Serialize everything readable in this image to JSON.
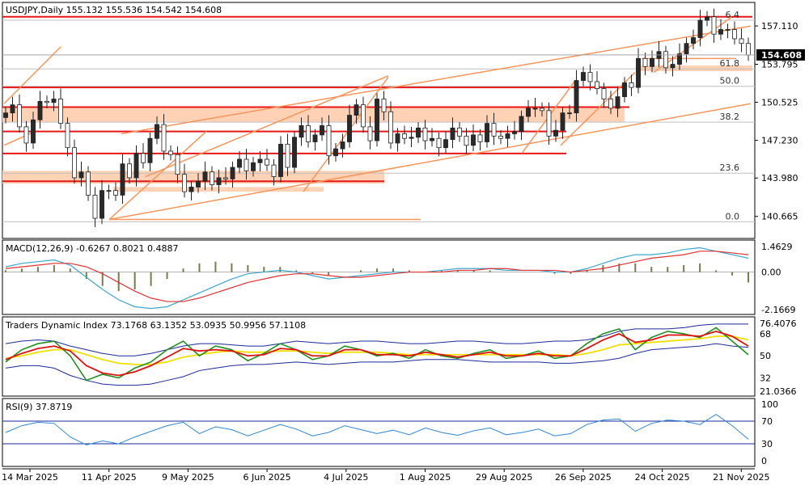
{
  "colors": {
    "bull_candle": "#2a2a2a",
    "bear_candle": "#ffffff",
    "fib_line": "#f7955a",
    "fib_zone": "#ffd2b5",
    "red_level": "#e81616",
    "macd_signal": "#e03333",
    "macd_main": "#3aa7ce",
    "tdi_band": "#1a2a9c",
    "tdi_green": "#1f8f1f",
    "tdi_red": "#e01111",
    "tdi_yellow": "#f0e000",
    "rsi_line": "#2f86d6",
    "rsi_level": "#1a2a9c",
    "grid": "#c0c0c0"
  },
  "chart_data": [
    {
      "type": "candlestick",
      "title": "USDJPY,Daily  155.132 155.536 154.542 154.608",
      "ylim": [
        138.9,
        159.0
      ],
      "y_ticks": [
        "157.110",
        "153.795",
        "150.525",
        "147.230",
        "143.980",
        "140.665"
      ],
      "y_tick_values": [
        157.11,
        153.795,
        150.525,
        147.23,
        143.98,
        140.665
      ],
      "current_price_label": "154.608",
      "current_price": 154.608,
      "x_labels": [
        "14 Mar 2025",
        "11 Apr 2025",
        "9 May 2025",
        "6 Jun 2025",
        "4 Jul 2025",
        "1 Aug 2025",
        "29 Aug 2025",
        "26 Sep 2025",
        "24 Oct 2025",
        "21 Nov 2025"
      ],
      "fib_labels": [
        "6.4",
        "61.8",
        "50.0",
        "38.2",
        "23.6",
        "0.0"
      ],
      "fib_values": [
        157.6,
        153.4,
        151.9,
        148.8,
        144.4,
        140.2
      ],
      "horizontal_levels": [
        157.9,
        151.8,
        150.1,
        148.0,
        146.1,
        143.7
      ],
      "closes": [
        149.6,
        150.3,
        148.4,
        147.0,
        149.0,
        150.6,
        150.5,
        150.8,
        148.7,
        146.6,
        144.0,
        144.5,
        142.5,
        140.5,
        142.9,
        142.9,
        142.5,
        145.2,
        144.0,
        146.1,
        145.3,
        147.4,
        148.6,
        146.3,
        146.0,
        144.3,
        142.8,
        143.2,
        143.7,
        144.5,
        143.4,
        144.0,
        143.9,
        144.9,
        145.6,
        144.6,
        145.3,
        145.6,
        145.1,
        144.1,
        146.9,
        144.9,
        147.5,
        148.5,
        147.1,
        147.7,
        148.5,
        145.9,
        146.5,
        147.1,
        149.4,
        150.3,
        148.4,
        147.2,
        150.8,
        149.7,
        147.0,
        147.8,
        147.4,
        147.5,
        148.3,
        147.2,
        147.4,
        146.6,
        147.3,
        148.3,
        147.6,
        146.8,
        147.7,
        147.1,
        148.7,
        147.6,
        147.4,
        147.8,
        148.0,
        149.3,
        150.0,
        150.0,
        149.8,
        147.6,
        148.1,
        149.6,
        149.6,
        152.4,
        153.1,
        152.3,
        151.7,
        150.8,
        150.0,
        151.0,
        152.2,
        151.8,
        154.3,
        153.6,
        154.3,
        154.9,
        153.5,
        153.8,
        154.7,
        155.6,
        156.1,
        157.6,
        157.9,
        156.4,
        156.8,
        156.8,
        156.0,
        155.6,
        154.6
      ]
    },
    {
      "type": "line",
      "title": "MACD(12,26,9) -0.6267 0.8021 0.4887",
      "y_ticks": [
        "1.4629",
        "0.00",
        "-2.1669"
      ],
      "ylim": [
        -2.35,
        1.75
      ],
      "series": [
        {
          "name": "MACD main",
          "values": [
            0.3,
            0.5,
            0.6,
            0.7,
            0.4,
            -0.3,
            -1.0,
            -1.6,
            -2.0,
            -2.1,
            -2.0,
            -1.6,
            -1.2,
            -0.8,
            -0.4,
            -0.1,
            0.0,
            0.1,
            0.0,
            -0.2,
            -0.4,
            -0.3,
            -0.2,
            -0.1,
            0.0,
            0.0,
            0.0,
            0.1,
            0.2,
            0.2,
            0.2,
            0.1,
            0.1,
            0.1,
            0.0,
            0.0,
            0.2,
            0.5,
            0.8,
            1.0,
            1.0,
            1.1,
            1.3,
            1.4,
            1.2,
            1.0,
            0.8
          ]
        },
        {
          "name": "Signal",
          "values": [
            0.2,
            0.3,
            0.4,
            0.5,
            0.5,
            0.3,
            -0.1,
            -0.6,
            -1.1,
            -1.5,
            -1.7,
            -1.7,
            -1.5,
            -1.2,
            -0.9,
            -0.6,
            -0.4,
            -0.2,
            -0.1,
            -0.1,
            -0.2,
            -0.3,
            -0.3,
            -0.2,
            -0.1,
            0.0,
            0.0,
            0.0,
            0.1,
            0.1,
            0.2,
            0.2,
            0.1,
            0.1,
            0.1,
            0.0,
            0.1,
            0.2,
            0.4,
            0.6,
            0.8,
            0.9,
            1.0,
            1.2,
            1.2,
            1.1,
            1.0
          ]
        },
        {
          "name": "Histogram",
          "values": [
            0.1,
            0.2,
            0.3,
            0.4,
            0.2,
            -0.4,
            -0.8,
            -1.1,
            -1.0,
            -0.8,
            -0.4,
            0.2,
            0.5,
            0.6,
            0.5,
            0.4,
            0.3,
            0.3,
            0.1,
            -0.1,
            -0.2,
            0.0,
            0.1,
            0.2,
            0.2,
            0.1,
            0.0,
            0.1,
            0.1,
            0.1,
            0.1,
            0.0,
            0.0,
            0.0,
            -0.1,
            -0.1,
            0.1,
            0.4,
            0.5,
            0.5,
            0.3,
            0.3,
            0.4,
            0.5,
            0.1,
            -0.2,
            -0.6
          ]
        }
      ]
    },
    {
      "type": "line",
      "title": "Traders Dynamic Index 73.1768 63.1352 53.0935 50.9956 57.1108",
      "y_ticks": [
        "76.4076",
        "68",
        "50",
        "32",
        "21.0366"
      ],
      "y_tick_values": [
        76.4076,
        68,
        50,
        32,
        21.0366
      ],
      "ylim": [
        18.5,
        80.5
      ],
      "series": [
        {
          "name": "Upper band",
          "values": [
            60,
            62,
            63,
            62,
            58,
            55,
            52,
            50,
            50,
            52,
            55,
            58,
            60,
            60,
            59,
            58,
            58,
            60,
            62,
            61,
            60,
            61,
            62,
            62,
            61,
            60,
            60,
            61,
            62,
            62,
            61,
            60,
            60,
            61,
            62,
            62,
            63,
            66,
            70,
            72,
            72,
            72,
            73,
            75,
            76,
            76,
            76
          ]
        },
        {
          "name": "Lower band",
          "values": [
            40,
            42,
            42,
            40,
            34,
            30,
            27,
            26,
            26,
            27,
            30,
            33,
            38,
            40,
            42,
            43,
            43,
            44,
            45,
            44,
            43,
            44,
            45,
            45,
            45,
            46,
            47,
            47,
            47,
            46,
            45,
            45,
            45,
            45,
            44,
            44,
            45,
            46,
            48,
            52,
            55,
            56,
            57,
            58,
            60,
            58,
            57
          ]
        },
        {
          "name": "Green line",
          "values": [
            45,
            55,
            60,
            62,
            50,
            30,
            35,
            32,
            40,
            45,
            55,
            62,
            50,
            58,
            55,
            46,
            52,
            60,
            55,
            47,
            50,
            58,
            55,
            50,
            52,
            48,
            55,
            50,
            48,
            52,
            55,
            48,
            50,
            54,
            48,
            50,
            60,
            68,
            72,
            55,
            65,
            70,
            68,
            65,
            73,
            62,
            51
          ]
        },
        {
          "name": "Red line",
          "values": [
            47,
            52,
            56,
            58,
            54,
            42,
            36,
            34,
            37,
            42,
            49,
            56,
            54,
            55,
            54,
            50,
            51,
            56,
            55,
            50,
            50,
            55,
            55,
            51,
            51,
            50,
            53,
            51,
            49,
            51,
            53,
            50,
            50,
            52,
            50,
            50,
            56,
            63,
            68,
            61,
            63,
            67,
            67,
            66,
            70,
            66,
            58
          ]
        },
        {
          "name": "Yellow line",
          "values": [
            48,
            50,
            53,
            55,
            55,
            51,
            47,
            44,
            43,
            43,
            45,
            49,
            51,
            53,
            54,
            53,
            53,
            54,
            54,
            53,
            52,
            53,
            53,
            53,
            52,
            51,
            51,
            51,
            51,
            51,
            51,
            51,
            51,
            51,
            51,
            50,
            52,
            55,
            59,
            60,
            61,
            62,
            63,
            64,
            66,
            66,
            63
          ]
        }
      ]
    },
    {
      "type": "line",
      "title": "RSI(9) 37.8719",
      "y_ticks": [
        "100",
        "70",
        "30",
        "0"
      ],
      "y_tick_values": [
        100,
        70,
        30,
        0
      ],
      "ylim": [
        0,
        100
      ],
      "levels": [
        30,
        70
      ],
      "series": [
        {
          "name": "RSI",
          "values": [
            50,
            62,
            68,
            66,
            42,
            28,
            35,
            30,
            42,
            52,
            62,
            68,
            48,
            60,
            55,
            44,
            54,
            64,
            56,
            44,
            50,
            62,
            55,
            48,
            54,
            46,
            58,
            50,
            45,
            53,
            58,
            46,
            50,
            56,
            44,
            48,
            64,
            72,
            74,
            52,
            66,
            72,
            70,
            64,
            82,
            62,
            38
          ]
        }
      ]
    }
  ]
}
